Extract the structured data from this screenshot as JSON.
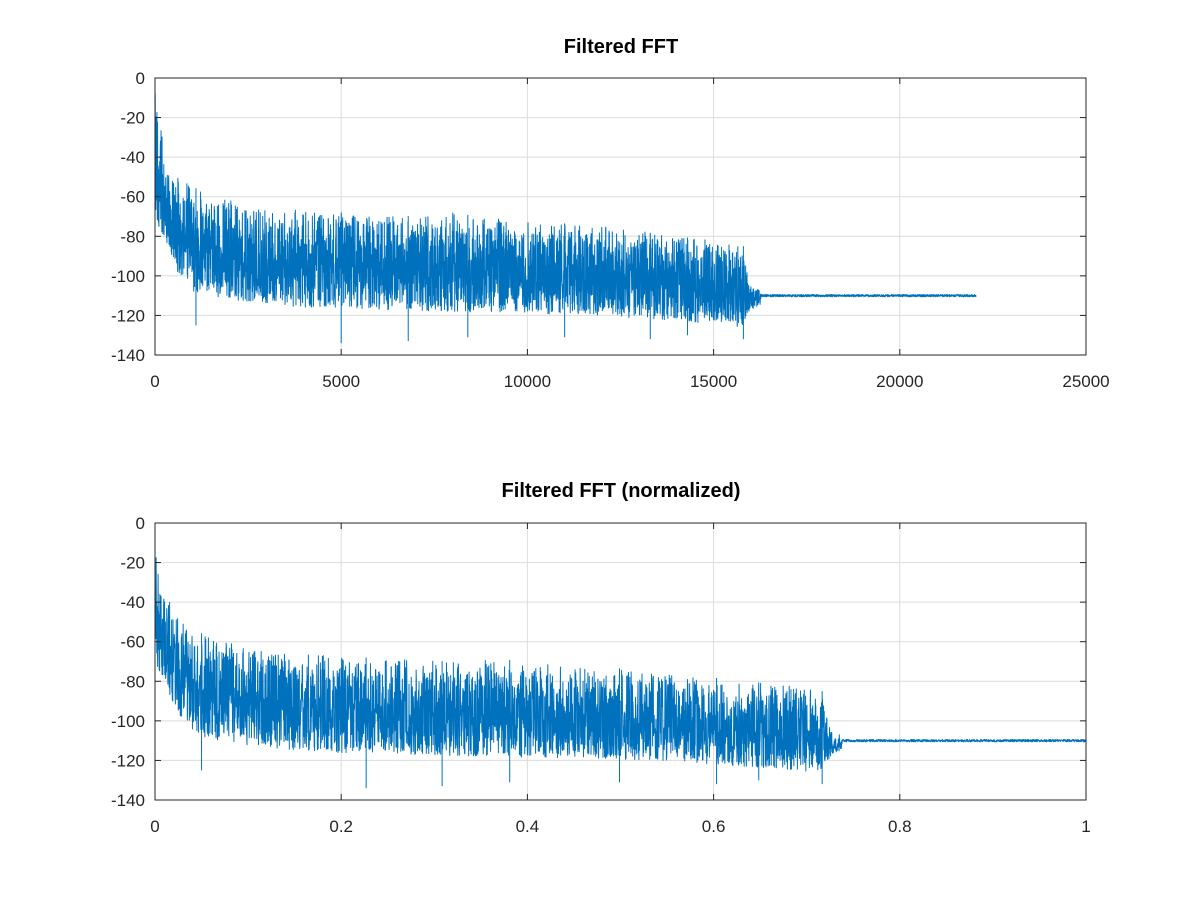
{
  "figure": {
    "background": "#ffffff"
  },
  "chart_data": [
    {
      "type": "line",
      "title": "Filtered FFT",
      "xlabel": "",
      "ylabel": "",
      "xlim": [
        0,
        25000
      ],
      "ylim": [
        -140,
        0
      ],
      "grid": true,
      "x_tick_labels": [
        "0",
        "5000",
        "10000",
        "15000",
        "20000",
        "25000"
      ],
      "y_tick_labels": [
        "0",
        "-20",
        "-40",
        "-60",
        "-80",
        "-100",
        "-120",
        "-140"
      ],
      "series": [
        {
          "color": "#0072BD",
          "x_max": 22050,
          "cutoff_x": 15800,
          "envelope_upper": [
            [
              0,
              -5
            ],
            [
              100,
              -20
            ],
            [
              300,
              -38
            ],
            [
              600,
              -50
            ],
            [
              1000,
              -55
            ],
            [
              2000,
              -62
            ],
            [
              3000,
              -66
            ],
            [
              5000,
              -68
            ],
            [
              7000,
              -70
            ],
            [
              8000,
              -68
            ],
            [
              9000,
              -71
            ],
            [
              10000,
              -72
            ],
            [
              12000,
              -75
            ],
            [
              14000,
              -80
            ],
            [
              15000,
              -82
            ],
            [
              15800,
              -85
            ],
            [
              16000,
              -105
            ],
            [
              16500,
              -109
            ],
            [
              22050,
              -109
            ]
          ],
          "envelope_lower": [
            [
              0,
              -70
            ],
            [
              500,
              -95
            ],
            [
              1000,
              -108
            ],
            [
              2000,
              -112
            ],
            [
              4000,
              -116
            ],
            [
              6000,
              -117
            ],
            [
              8000,
              -118
            ],
            [
              10000,
              -119
            ],
            [
              12000,
              -120
            ],
            [
              14000,
              -123
            ],
            [
              15800,
              -126
            ],
            [
              16000,
              -118
            ],
            [
              16500,
              -111
            ],
            [
              22050,
              -111
            ]
          ],
          "spikes": [
            [
              1100,
              -125
            ],
            [
              5000,
              -134
            ],
            [
              6800,
              -133
            ],
            [
              8400,
              -131
            ],
            [
              11000,
              -131
            ],
            [
              13300,
              -132
            ],
            [
              14300,
              -130
            ],
            [
              15800,
              -132
            ]
          ]
        }
      ]
    },
    {
      "type": "line",
      "title": "Filtered FFT (normalized)",
      "xlabel": "",
      "ylabel": "",
      "xlim": [
        0,
        1
      ],
      "ylim": [
        -140,
        0
      ],
      "grid": true,
      "x_tick_labels": [
        "0",
        "0.2",
        "0.4",
        "0.6",
        "0.8",
        "1"
      ],
      "y_tick_labels": [
        "0",
        "-20",
        "-40",
        "-60",
        "-80",
        "-100",
        "-120",
        "-140"
      ],
      "series": [
        {
          "color": "#0072BD",
          "x_max": 1,
          "cutoff_x": 0.7166,
          "envelope_upper": [
            [
              0,
              -5
            ],
            [
              0.0045,
              -20
            ],
            [
              0.0136,
              -38
            ],
            [
              0.0272,
              -50
            ],
            [
              0.0454,
              -55
            ],
            [
              0.0907,
              -62
            ],
            [
              0.136,
              -66
            ],
            [
              0.2268,
              -68
            ],
            [
              0.3175,
              -70
            ],
            [
              0.3628,
              -68
            ],
            [
              0.4082,
              -71
            ],
            [
              0.4535,
              -72
            ],
            [
              0.5442,
              -75
            ],
            [
              0.6349,
              -80
            ],
            [
              0.6803,
              -82
            ],
            [
              0.7166,
              -85
            ],
            [
              0.7256,
              -105
            ],
            [
              0.7483,
              -109
            ],
            [
              1,
              -109
            ]
          ],
          "envelope_lower": [
            [
              0,
              -70
            ],
            [
              0.0227,
              -95
            ],
            [
              0.0454,
              -108
            ],
            [
              0.0907,
              -112
            ],
            [
              0.1814,
              -116
            ],
            [
              0.2721,
              -117
            ],
            [
              0.3628,
              -118
            ],
            [
              0.4535,
              -119
            ],
            [
              0.5442,
              -120
            ],
            [
              0.6349,
              -123
            ],
            [
              0.7166,
              -126
            ],
            [
              0.7256,
              -118
            ],
            [
              0.7483,
              -111
            ],
            [
              1,
              -111
            ]
          ],
          "spikes": [
            [
              0.05,
              -125
            ],
            [
              0.2268,
              -134
            ],
            [
              0.3084,
              -133
            ],
            [
              0.381,
              -131
            ],
            [
              0.4989,
              -131
            ],
            [
              0.6032,
              -132
            ],
            [
              0.6485,
              -130
            ],
            [
              0.7166,
              -132
            ]
          ]
        }
      ]
    }
  ]
}
